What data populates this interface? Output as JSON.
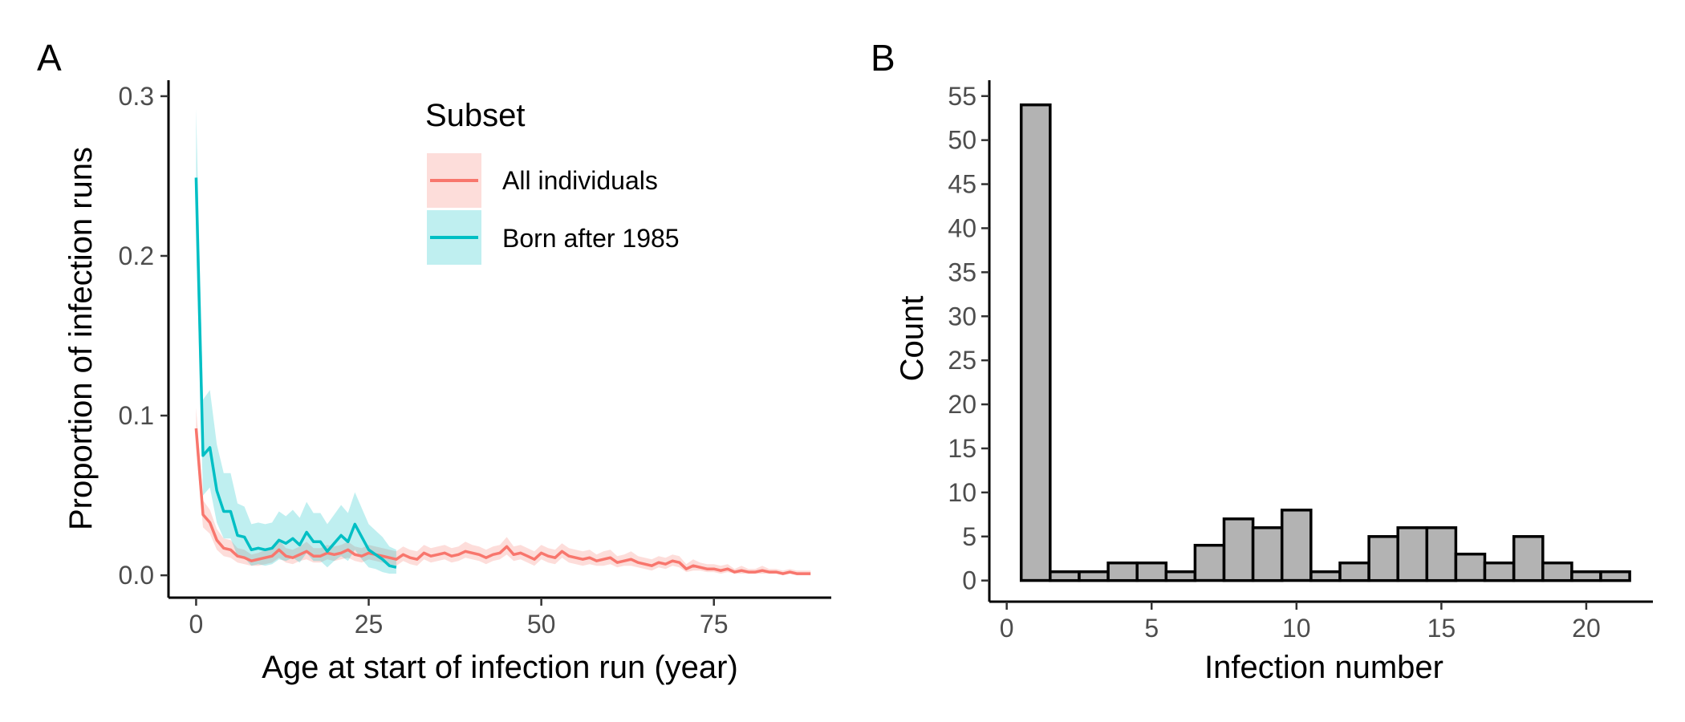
{
  "panels": {
    "a_label": "A",
    "b_label": "B"
  },
  "chart_data": [
    {
      "type": "line",
      "panel": "A",
      "xlabel": "Age at start of infection run (year)",
      "ylabel": "Proportion of infection runs",
      "xlim": [
        -4,
        92
      ],
      "ylim": [
        -0.014,
        0.31
      ],
      "x_ticks": [
        0,
        25,
        50,
        75
      ],
      "y_ticks": [
        0.0,
        0.1,
        0.2,
        0.3
      ],
      "x_tick_labels": [
        "0",
        "25",
        "50",
        "75"
      ],
      "y_tick_labels": [
        "0.0",
        "0.1",
        "0.2",
        "0.3"
      ],
      "grid": false,
      "legend": {
        "title": "Subset",
        "placement": "top-right inside",
        "entries": [
          "All individuals",
          "Born after 1985"
        ]
      },
      "series": [
        {
          "name": "All individuals",
          "color": "#F8766D",
          "band_color": "#F8766D",
          "x": [
            0,
            1,
            2,
            3,
            4,
            5,
            6,
            7,
            8,
            9,
            10,
            11,
            12,
            13,
            14,
            15,
            16,
            17,
            18,
            19,
            20,
            21,
            22,
            23,
            24,
            25,
            26,
            27,
            28,
            29,
            30,
            31,
            32,
            33,
            34,
            35,
            36,
            37,
            38,
            39,
            40,
            41,
            42,
            43,
            44,
            45,
            46,
            47,
            48,
            49,
            50,
            51,
            52,
            53,
            54,
            55,
            56,
            57,
            58,
            59,
            60,
            61,
            62,
            63,
            64,
            65,
            66,
            67,
            68,
            69,
            70,
            71,
            72,
            73,
            74,
            75,
            76,
            77,
            78,
            79,
            80,
            81,
            82,
            83,
            84,
            85,
            86,
            87,
            88,
            89
          ],
          "y": [
            0.092,
            0.038,
            0.033,
            0.022,
            0.017,
            0.016,
            0.012,
            0.011,
            0.009,
            0.01,
            0.011,
            0.012,
            0.016,
            0.012,
            0.011,
            0.013,
            0.015,
            0.012,
            0.012,
            0.014,
            0.013,
            0.014,
            0.016,
            0.013,
            0.012,
            0.014,
            0.013,
            0.012,
            0.011,
            0.01,
            0.013,
            0.011,
            0.01,
            0.014,
            0.012,
            0.013,
            0.014,
            0.012,
            0.013,
            0.015,
            0.014,
            0.013,
            0.011,
            0.013,
            0.014,
            0.018,
            0.013,
            0.014,
            0.012,
            0.01,
            0.014,
            0.012,
            0.011,
            0.015,
            0.012,
            0.011,
            0.01,
            0.011,
            0.009,
            0.01,
            0.011,
            0.008,
            0.009,
            0.01,
            0.008,
            0.007,
            0.006,
            0.008,
            0.007,
            0.009,
            0.008,
            0.004,
            0.006,
            0.005,
            0.004,
            0.004,
            0.003,
            0.004,
            0.002,
            0.003,
            0.002,
            0.002,
            0.003,
            0.002,
            0.002,
            0.001,
            0.002,
            0.001,
            0.001,
            0.001
          ],
          "lower": [
            0.08,
            0.03,
            0.026,
            0.016,
            0.012,
            0.011,
            0.008,
            0.007,
            0.006,
            0.006,
            0.007,
            0.008,
            0.011,
            0.008,
            0.007,
            0.009,
            0.01,
            0.008,
            0.008,
            0.01,
            0.009,
            0.01,
            0.011,
            0.009,
            0.008,
            0.01,
            0.009,
            0.008,
            0.007,
            0.006,
            0.009,
            0.007,
            0.006,
            0.01,
            0.008,
            0.009,
            0.01,
            0.008,
            0.009,
            0.011,
            0.01,
            0.009,
            0.007,
            0.009,
            0.01,
            0.013,
            0.009,
            0.01,
            0.008,
            0.006,
            0.01,
            0.008,
            0.007,
            0.011,
            0.008,
            0.007,
            0.006,
            0.007,
            0.006,
            0.006,
            0.007,
            0.005,
            0.006,
            0.006,
            0.005,
            0.004,
            0.003,
            0.005,
            0.004,
            0.006,
            0.005,
            0.002,
            0.003,
            0.003,
            0.002,
            0.002,
            0.001,
            0.002,
            0.001,
            0.001,
            0.001,
            0.001,
            0.001,
            0.001,
            0.001,
            0.0,
            0.001,
            0.0,
            0.0,
            0.0
          ],
          "upper": [
            0.105,
            0.047,
            0.041,
            0.029,
            0.023,
            0.022,
            0.017,
            0.016,
            0.013,
            0.014,
            0.016,
            0.017,
            0.022,
            0.017,
            0.016,
            0.018,
            0.021,
            0.017,
            0.017,
            0.019,
            0.018,
            0.019,
            0.021,
            0.018,
            0.017,
            0.019,
            0.018,
            0.017,
            0.016,
            0.015,
            0.018,
            0.016,
            0.015,
            0.019,
            0.017,
            0.018,
            0.019,
            0.017,
            0.018,
            0.021,
            0.019,
            0.018,
            0.016,
            0.018,
            0.019,
            0.024,
            0.018,
            0.019,
            0.017,
            0.015,
            0.019,
            0.017,
            0.016,
            0.02,
            0.017,
            0.016,
            0.015,
            0.016,
            0.013,
            0.015,
            0.016,
            0.012,
            0.013,
            0.015,
            0.012,
            0.011,
            0.01,
            0.012,
            0.011,
            0.013,
            0.012,
            0.007,
            0.01,
            0.008,
            0.007,
            0.007,
            0.006,
            0.007,
            0.004,
            0.006,
            0.004,
            0.004,
            0.006,
            0.004,
            0.004,
            0.003,
            0.004,
            0.003,
            0.003,
            0.003
          ]
        },
        {
          "name": "Born after 1985",
          "color": "#00BFC4",
          "band_color": "#00BFC4",
          "x": [
            0,
            1,
            2,
            3,
            4,
            5,
            6,
            7,
            8,
            9,
            10,
            11,
            12,
            13,
            14,
            15,
            16,
            17,
            18,
            19,
            20,
            21,
            22,
            23,
            24,
            25,
            26,
            27,
            28,
            29
          ],
          "y": [
            0.249,
            0.075,
            0.08,
            0.053,
            0.04,
            0.04,
            0.025,
            0.024,
            0.016,
            0.017,
            0.016,
            0.017,
            0.022,
            0.02,
            0.023,
            0.019,
            0.027,
            0.021,
            0.021,
            0.015,
            0.02,
            0.025,
            0.021,
            0.032,
            0.024,
            0.016,
            0.013,
            0.01,
            0.006,
            0.005
          ],
          "lower": [
            0.21,
            0.05,
            0.055,
            0.033,
            0.023,
            0.023,
            0.012,
            0.011,
            0.006,
            0.007,
            0.006,
            0.007,
            0.01,
            0.009,
            0.011,
            0.008,
            0.014,
            0.009,
            0.009,
            0.005,
            0.009,
            0.012,
            0.009,
            0.016,
            0.01,
            0.005,
            0.004,
            0.002,
            0.001,
            0.001
          ],
          "upper": [
            0.292,
            0.11,
            0.116,
            0.082,
            0.064,
            0.064,
            0.045,
            0.043,
            0.032,
            0.033,
            0.032,
            0.033,
            0.04,
            0.037,
            0.041,
            0.036,
            0.046,
            0.039,
            0.039,
            0.032,
            0.038,
            0.044,
            0.039,
            0.052,
            0.042,
            0.032,
            0.028,
            0.024,
            0.018,
            0.016
          ]
        }
      ]
    },
    {
      "type": "bar",
      "panel": "B",
      "xlabel": "Infection number",
      "ylabel": "Count",
      "xlim": [
        -0.6,
        22.3
      ],
      "ylim": [
        -2.4,
        56.8
      ],
      "x_ticks": [
        0,
        5,
        10,
        15,
        20
      ],
      "y_ticks": [
        0,
        5,
        10,
        15,
        20,
        25,
        30,
        35,
        40,
        45,
        50,
        55
      ],
      "x_tick_labels": [
        "0",
        "5",
        "10",
        "15",
        "20"
      ],
      "y_tick_labels": [
        "0",
        "5",
        "10",
        "15",
        "20",
        "25",
        "30",
        "35",
        "40",
        "45",
        "50",
        "55"
      ],
      "grid": false,
      "bar_fill": "#B3B3B3",
      "bar_outline": "#000000",
      "categories": [
        1,
        2,
        3,
        4,
        5,
        6,
        7,
        8,
        9,
        10,
        11,
        12,
        13,
        14,
        15,
        16,
        17,
        18,
        19,
        20,
        21
      ],
      "values": [
        54,
        1,
        1,
        2,
        2,
        1,
        4,
        7,
        6,
        8,
        1,
        2,
        5,
        6,
        6,
        3,
        2,
        5,
        2,
        1,
        1
      ]
    }
  ]
}
